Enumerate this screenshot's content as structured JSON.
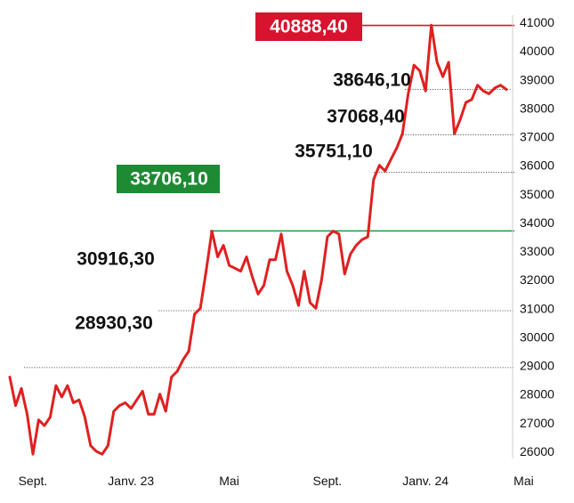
{
  "chart_data": {
    "type": "line",
    "title": "",
    "xlabel": "",
    "ylabel": "",
    "ylim": [
      25700,
      41150
    ],
    "y_ticks": [
      26000,
      27000,
      28000,
      29000,
      30000,
      31000,
      32000,
      33000,
      34000,
      35000,
      36000,
      37000,
      38000,
      39000,
      40000,
      41000
    ],
    "y_tick_labels": [
      "26000",
      "27000",
      "28000",
      "29000",
      "30000",
      "31000",
      "32000",
      "33000",
      "34000",
      "35000",
      "36000",
      "37000",
      "38000",
      "39000",
      "40000",
      "41000"
    ],
    "x_ticks": [
      {
        "label": "Sept.",
        "index": 4
      },
      {
        "label": "Janv. 23",
        "index": 21
      },
      {
        "label": "Mai",
        "index": 38
      },
      {
        "label": "Sept.",
        "index": 55
      },
      {
        "label": "Janv. 24",
        "index": 72
      },
      {
        "label": "Mai",
        "index": 89
      }
    ],
    "series": [
      {
        "color": "#e02020",
        "values": [
          28600,
          27600,
          28200,
          27300,
          25900,
          27100,
          26900,
          27200,
          28300,
          27900,
          28300,
          27700,
          27800,
          27200,
          26200,
          26000,
          25900,
          26200,
          27400,
          27600,
          27700,
          27500,
          27800,
          28100,
          27300,
          27300,
          28000,
          27400,
          28600,
          28800,
          29200,
          29500,
          30800,
          31000,
          32300,
          33700,
          32800,
          33200,
          32500,
          32400,
          32300,
          32800,
          32100,
          31500,
          31800,
          32700,
          32700,
          33600,
          32300,
          31800,
          31100,
          32300,
          31200,
          31000,
          32000,
          33500,
          33700,
          33600,
          32200,
          32900,
          33200,
          33400,
          33500,
          35500,
          36000,
          35800,
          36200,
          36600,
          37100,
          38500,
          39500,
          39300,
          38600,
          40900,
          39600,
          39100,
          39600,
          37100,
          37600,
          38200,
          38300,
          38800,
          38600,
          38500,
          38700,
          38800,
          38650
        ]
      }
    ],
    "reference_lines": [
      {
        "value": 40888.4,
        "label": "40888,40",
        "style": "solid",
        "color": "#d7132e",
        "badge_color": "#d7132e",
        "badge": true
      },
      {
        "value": 38646.1,
        "label": "38646,10",
        "style": "dotted",
        "badge": false
      },
      {
        "value": 37068.4,
        "label": "37068,40",
        "style": "dotted",
        "badge": false
      },
      {
        "value": 35751.1,
        "label": "35751,10",
        "style": "dotted",
        "badge": false
      },
      {
        "value": 33706.1,
        "label": "33706,10",
        "style": "solid",
        "color": "#1e9a3a",
        "badge_color": "#1e8a34",
        "badge": true
      },
      {
        "value": 30916.3,
        "label": "30916,30",
        "style": "dotted",
        "badge": false
      },
      {
        "value": 28930.3,
        "label": "28930,30",
        "style": "dotted",
        "badge": false
      }
    ],
    "grid": false,
    "y_axis_side": "right"
  }
}
